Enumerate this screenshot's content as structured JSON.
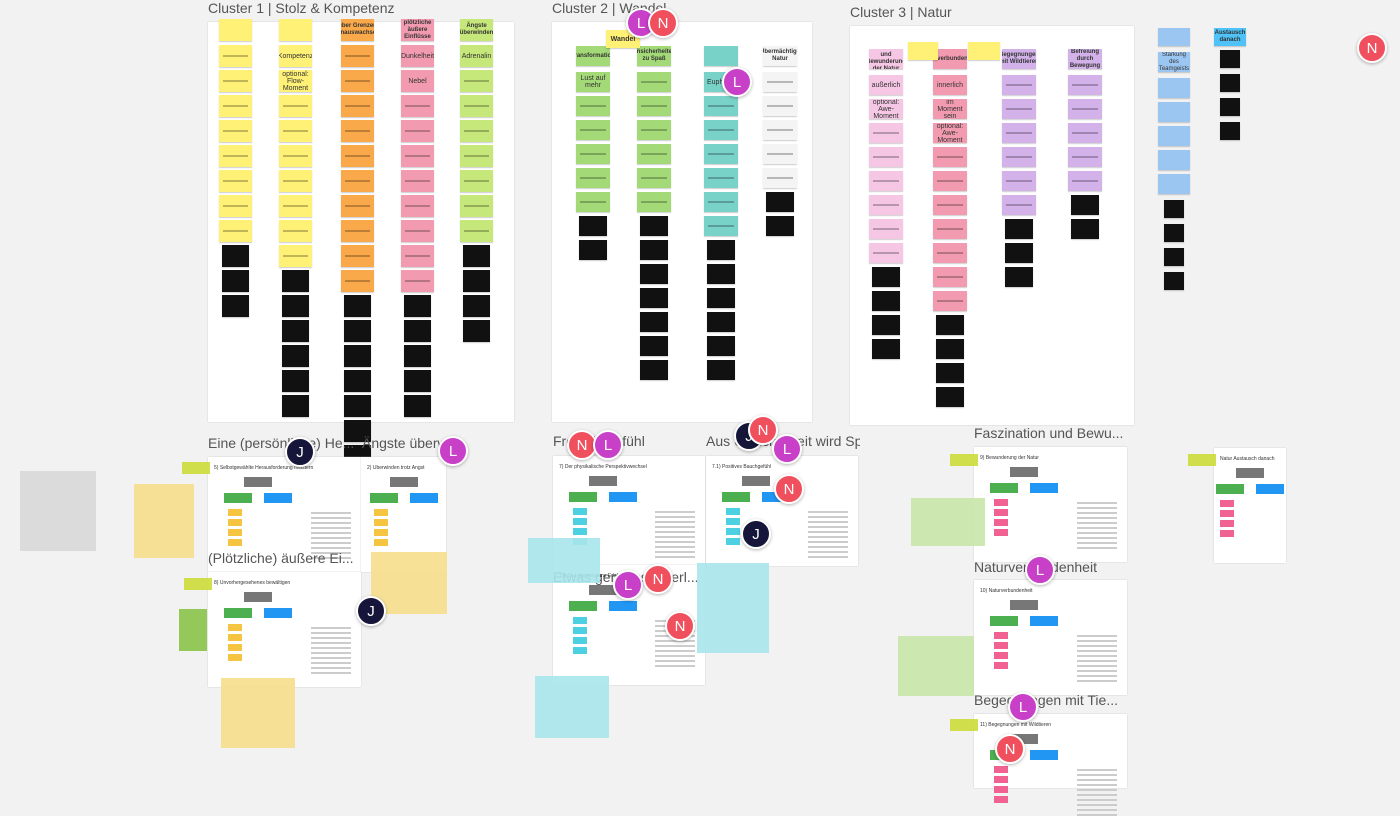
{
  "cluster_1": {
    "title": "Cluster 1 | Stolz & Kompetenz",
    "columns": [
      {
        "notes": []
      },
      {
        "notes": [
          "Kompetenz",
          "optional: Flow-Moment"
        ]
      },
      {
        "header": "über Grenzen hinauswachsen",
        "notes": []
      },
      {
        "header": "plötzliche äußere Einflüsse",
        "notes": [
          "Dunkelheit",
          "Nebel"
        ]
      },
      {
        "header": "Ängste überwinden",
        "notes": [
          "Adrenalin"
        ]
      }
    ]
  },
  "cluster_2": {
    "title": "Cluster 2 | Wandel",
    "root": "Wandel",
    "columns": [
      {
        "header": "Transformation",
        "notes": [
          "Lust auf mehr"
        ]
      },
      {
        "header": "Unsicherheiten zu Spaß",
        "notes": []
      },
      {
        "notes": [
          "Euphorie"
        ]
      },
      {
        "header": "Übermächtige Natur",
        "notes": []
      }
    ]
  },
  "cluster_3": {
    "title": "Cluster 3 | Natur",
    "columns": [
      {
        "header": "Faszination und Bewunderung der Natur",
        "notes": [
          "außerlich",
          "optional: Awe-Moment"
        ]
      },
      {
        "header": "Naturverbundenheit",
        "notes": [
          "innerlich",
          "im Moment sein",
          "optional: Awe-Moment"
        ]
      },
      {
        "header": "Begegnungen mit Wildtieren",
        "notes": []
      },
      {
        "header": "Befreiung durch Bewegung",
        "notes": []
      }
    ]
  },
  "side": {
    "notes": [
      "Stärkung des Teamgeists"
    ],
    "header": "Austausch danach"
  },
  "scenes": [
    {
      "title": "Eine (persönliche) He...",
      "heading": "5) Selbstgewählte Herausforderung meistern"
    },
    {
      "title": "Ängste überwinden",
      "heading": "2) Überwinden trotz Angst"
    },
    {
      "title": "(Plötzliche) äußere Ei...",
      "heading": "8) Unvorhergesehenes bewältigen"
    },
    {
      "title": "Freiheitsgefühl",
      "heading": "7) Der physikalische Perspektivwechsel"
    },
    {
      "title": "Aus Unsicherheit wird Spaß",
      "heading": "7.1) Positives Bauchgefühl"
    },
    {
      "title": "Etwas gemeinsam erl...",
      "heading": "13) Das gemeinsame Erlebnis"
    },
    {
      "title": "Faszination und Bewu...",
      "heading": "9) Bewunderung der Natur"
    },
    {
      "title": "Naturverbundenheit",
      "heading": "10) Naturverbundenheit"
    },
    {
      "title": "Begegnungen mit Tie...",
      "heading": "11) Begegnungen mit Wildtieren"
    },
    {
      "heading": "Natur Austausch danach"
    }
  ],
  "avatars": [
    "L",
    "N",
    "L",
    "N",
    "J",
    "L",
    "N",
    "L",
    "J",
    "N",
    "L",
    "N",
    "J",
    "J",
    "L",
    "N",
    "N",
    "L",
    "L",
    "N"
  ]
}
